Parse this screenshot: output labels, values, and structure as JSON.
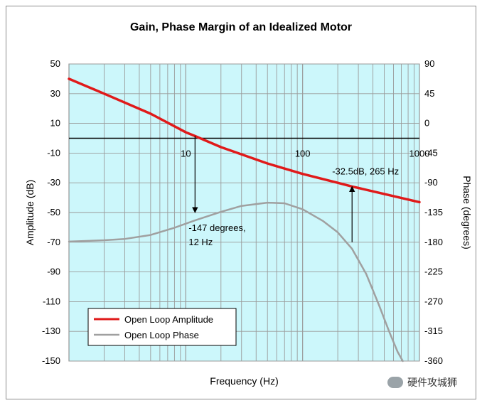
{
  "chart_data": {
    "type": "line",
    "title": "Gain, Phase Margin of an Idealized Motor",
    "xlabel": "Frequency (Hz)",
    "ylabel": "Amplitude (dB)",
    "ylabel_right": "Phase (degrees)",
    "x_scale": "log",
    "xlim": [
      1,
      1000
    ],
    "x_ticks": [
      "10",
      "100",
      "1000"
    ],
    "ylim": [
      -150,
      50
    ],
    "y_ticks": [
      50,
      30,
      10,
      -10,
      -30,
      -50,
      -70,
      -90,
      -110,
      -130,
      -150
    ],
    "ylim_right": [
      -360,
      90
    ],
    "y_ticks_right": [
      90,
      45,
      0,
      -45,
      -90,
      -135,
      -180,
      -225,
      -270,
      -315,
      -360
    ],
    "grid": true,
    "legend_position": "bottom-left",
    "series": [
      {
        "name": "Open Loop Amplitude",
        "axis": "left",
        "color": "#e01a1a",
        "x": [
          1,
          2,
          5,
          10,
          12,
          20,
          50,
          100,
          200,
          265,
          500,
          1000
        ],
        "y": [
          40,
          30,
          16.5,
          4,
          1.5,
          -6,
          -17,
          -24,
          -30,
          -32.5,
          -37.5,
          -43
        ]
      },
      {
        "name": "Open Loop Phase",
        "axis": "right",
        "color": "#a0a0a0",
        "x": [
          1,
          2,
          3,
          5,
          8,
          12,
          20,
          30,
          50,
          70,
          100,
          150,
          200,
          265,
          350,
          450,
          550,
          650,
          720
        ],
        "y": [
          -179,
          -177,
          -175,
          -169,
          -158,
          -147,
          -134,
          -125,
          -120,
          -121,
          -130,
          -148,
          -165,
          -190,
          -228,
          -275,
          -315,
          -346,
          -360
        ]
      }
    ],
    "annotations": [
      {
        "text_lines": [
          "-147 degrees,",
          "12 Hz"
        ],
        "x": 12,
        "from_y": 1.5,
        "to_y": -50
      },
      {
        "text_lines": [
          "-32.5dB, 265 Hz"
        ],
        "x": 265,
        "from_y": -70,
        "to_y": -32.5
      }
    ]
  },
  "watermark": "硬件攻城狮"
}
